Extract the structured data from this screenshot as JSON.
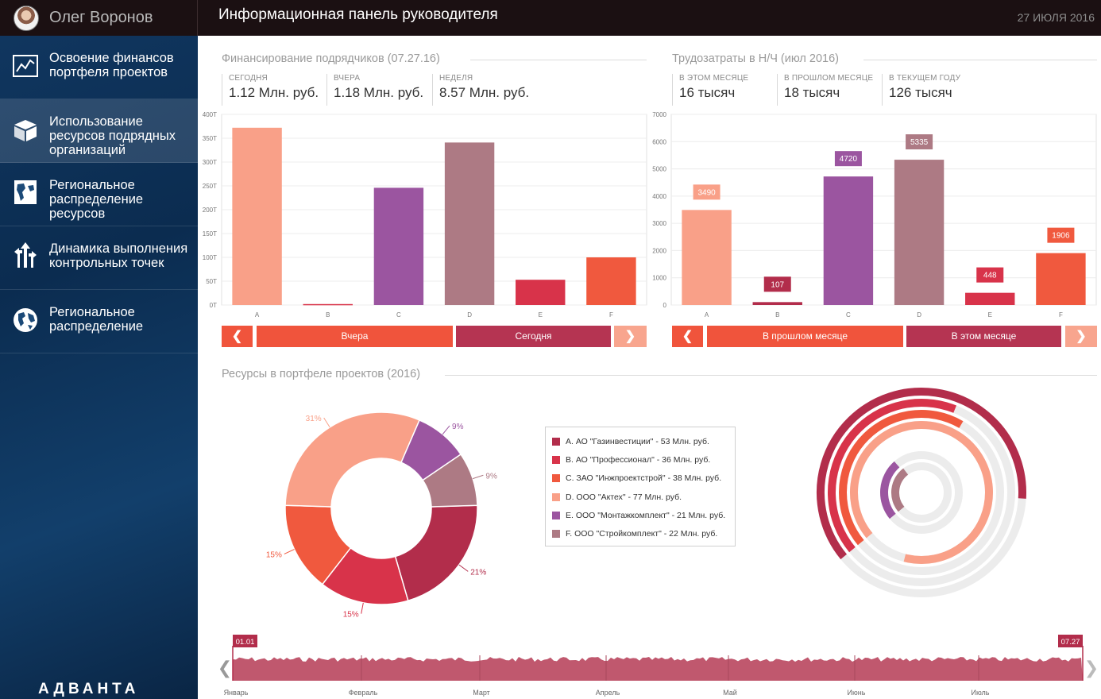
{
  "user": {
    "name": "Олег Воронов"
  },
  "header": {
    "title": "Информационная панель руководителя",
    "date": "27 ИЮЛЯ 2016"
  },
  "sidebar": {
    "items": [
      {
        "label": "Освоение финансов портфеля проектов",
        "icon": "line-chart-icon"
      },
      {
        "label": "Использование ресурсов подрядных организаций",
        "icon": "open-box-icon"
      },
      {
        "label": "Региональное распределение ресурсов",
        "icon": "map-icon"
      },
      {
        "label": "Динамика выполнения контрольных точек",
        "icon": "direction-arrows-icon"
      },
      {
        "label": "Региональное распределение",
        "icon": "globe-icon"
      }
    ],
    "logo_text": "АДВАНТА"
  },
  "funding": {
    "title": "Финансирование подрядчиков (07.27.16)",
    "stats": [
      {
        "label": "СЕГОДНЯ",
        "value": "1.12 Млн. руб."
      },
      {
        "label": "ВЧЕРА",
        "value": "1.18 Млн. руб."
      },
      {
        "label": "НЕДЕЛЯ",
        "value": "8.57 Млн. руб."
      }
    ],
    "buttons": {
      "prev": "❮",
      "left": "Вчера",
      "right": "Сегодня",
      "next": "❯"
    }
  },
  "labor": {
    "title": "Трудозатраты в Н/Ч (июл 2016)",
    "stats": [
      {
        "label": "В ЭТОМ МЕСЯЦЕ",
        "value": "16 тысяч"
      },
      {
        "label": "В ПРОШЛОМ МЕСЯЦЕ",
        "value": "18 тысяч"
      },
      {
        "label": "В ТЕКУЩЕМ ГОДУ",
        "value": "126 тысяч"
      }
    ],
    "buttons": {
      "prev": "❮",
      "left": "В прошлом месяце",
      "right": "В этом месяце",
      "next": "❯"
    }
  },
  "portfolio": {
    "title": "Ресурсы в портфеле проектов (2016)",
    "legend": [
      {
        "label": "A. АО \"Газинвестиции\" - 53 Млн. руб.",
        "color": "#b22d4b"
      },
      {
        "label": "B. АО \"Профессионал\" - 36 Млн. руб.",
        "color": "#d8334a"
      },
      {
        "label": "C. ЗАО \"Инжпроектстрой\" - 38 Млн. руб.",
        "color": "#f0593e"
      },
      {
        "label": "D. ООО \"Актех\" - 77 Млн. руб.",
        "color": "#f9a088"
      },
      {
        "label": "E. ООО \"Монтажкомплект\" - 21 Млн. руб.",
        "color": "#9b55a0"
      },
      {
        "label": "F. ООО \"Стройкомплект\" - 22 Млн. руб.",
        "color": "#ad7a84"
      }
    ]
  },
  "timeline": {
    "start_label": "01.01",
    "end_label": "07.27",
    "months": [
      "Январь",
      "Февраль",
      "Март",
      "Апрель",
      "Май",
      "Июнь",
      "Июль"
    ],
    "prev": "❮",
    "next": "❯"
  },
  "chart_data": [
    {
      "type": "bar",
      "title": "Финансирование подрядчиков (07.27.16)",
      "categories": [
        "A",
        "B",
        "C",
        "D",
        "E",
        "F"
      ],
      "values": [
        372,
        2,
        246,
        341,
        53,
        100
      ],
      "colors": [
        "#f9a088",
        "#d8334a",
        "#9b55a0",
        "#ad7a84",
        "#d8334a",
        "#f0593e"
      ],
      "y_ticks": [
        "0T",
        "50T",
        "100T",
        "150T",
        "200T",
        "250T",
        "300T",
        "350T",
        "400T"
      ],
      "ylim": [
        0,
        400
      ],
      "data_labels": false
    },
    {
      "type": "bar",
      "title": "Трудозатраты в Н/Ч (июл 2016)",
      "categories": [
        "A",
        "B",
        "C",
        "D",
        "E",
        "F"
      ],
      "values": [
        3490,
        107,
        4720,
        5335,
        448,
        1906
      ],
      "colors": [
        "#f9a088",
        "#b22d4b",
        "#9b55a0",
        "#ad7a84",
        "#d8334a",
        "#f0593e"
      ],
      "y_ticks": [
        "0",
        "1000",
        "2000",
        "3000",
        "4000",
        "5000",
        "6000",
        "7000"
      ],
      "ylim": [
        0,
        7000
      ],
      "data_labels": true
    },
    {
      "type": "pie",
      "title": "Ресурсы в портфеле проектов (2016)",
      "categories": [
        "A",
        "B",
        "C",
        "D",
        "E",
        "F"
      ],
      "values": [
        21,
        15,
        15,
        31,
        9,
        9
      ],
      "labels": [
        "21%",
        "15%",
        "15%",
        "31%",
        "9%",
        "9%"
      ],
      "colors": [
        "#b22d4b",
        "#d8334a",
        "#f0593e",
        "#f9a088",
        "#9b55a0",
        "#ad7a84"
      ]
    },
    {
      "type": "radial-bar",
      "categories": [
        "A",
        "B",
        "C",
        "D",
        "E",
        "F"
      ],
      "values": [
        53,
        36,
        38,
        77,
        21,
        22
      ],
      "max": 77,
      "colors": [
        "#b22d4b",
        "#d8334a",
        "#f0593e",
        "#f9a088",
        "#9b55a0",
        "#ad7a84"
      ]
    }
  ]
}
